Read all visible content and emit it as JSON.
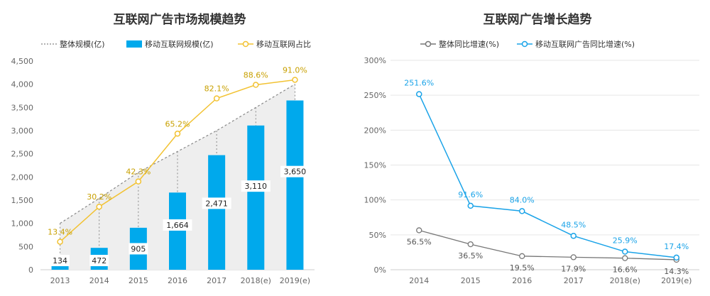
{
  "colors": {
    "bar": "#00a9ec",
    "overall_line": "#888888",
    "overall_fill": "#eeeeee",
    "share_line": "#f2c232",
    "share_label": "#c8a000",
    "growth_overall": "#777777",
    "growth_mobile": "#1aa3e8",
    "grid": "#e6e6e6"
  },
  "chart_data": [
    {
      "type": "bar",
      "title": "互联网广告市场规模趋势",
      "categories": [
        "2013",
        "2014",
        "2015",
        "2016",
        "2017",
        "2018(e)",
        "2019(e)"
      ],
      "ylim": [
        0,
        4500
      ],
      "yticks": [
        0,
        500,
        1000,
        1500,
        2000,
        2500,
        3000,
        3500,
        4000,
        4500
      ],
      "ytick_labels": [
        "0",
        "500",
        "1,000",
        "1,500",
        "2,000",
        "2,500",
        "3,000",
        "3,500",
        "4,000",
        "4,500"
      ],
      "legend": [
        "整体规模(亿)",
        "移动互联网规模(亿)",
        "移动互联网占比"
      ],
      "series": [
        {
          "name": "整体规模(亿)",
          "kind": "area",
          "values": [
            1000,
            1540,
            2100,
            2550,
            3000,
            3500,
            4000
          ]
        },
        {
          "name": "移动互联网规模(亿)",
          "kind": "bar",
          "values": [
            134,
            472,
            905,
            1664,
            2471,
            3110,
            3650
          ],
          "labels": [
            "134",
            "472",
            "905",
            "1,664",
            "2,471",
            "3,110",
            "3,650"
          ]
        },
        {
          "name": "移动互联网占比",
          "kind": "line",
          "values": [
            13.4,
            30.2,
            42.3,
            65.2,
            82.1,
            88.6,
            91.0
          ],
          "labels": [
            "13.4%",
            "30.2%",
            "42.3%",
            "65.2%",
            "82.1%",
            "88.6%",
            "91.0%"
          ]
        }
      ]
    },
    {
      "type": "line",
      "title": "互联网广告增长趋势",
      "categories": [
        "2014",
        "2015",
        "2016",
        "2017",
        "2018(e)",
        "2019(e)"
      ],
      "ylim": [
        0,
        300
      ],
      "yticks": [
        0,
        50,
        100,
        150,
        200,
        250,
        300
      ],
      "ytick_labels": [
        "0%",
        "50%",
        "100%",
        "150%",
        "200%",
        "250%",
        "300%"
      ],
      "legend": [
        "整体同比增速(%)",
        "移动互联网广告同比增速(%)"
      ],
      "series": [
        {
          "name": "整体同比增速(%)",
          "values": [
            56.5,
            36.5,
            19.5,
            17.9,
            16.6,
            14.3
          ],
          "labels": [
            "56.5%",
            "36.5%",
            "19.5%",
            "17.9%",
            "16.6%",
            "14.3%"
          ]
        },
        {
          "name": "移动互联网广告同比增速(%)",
          "values": [
            251.6,
            91.6,
            84.0,
            48.5,
            25.9,
            17.4
          ],
          "labels": [
            "251.6%",
            "91.6%",
            "84.0%",
            "48.5%",
            "25.9%",
            "17.4%"
          ]
        }
      ]
    }
  ]
}
